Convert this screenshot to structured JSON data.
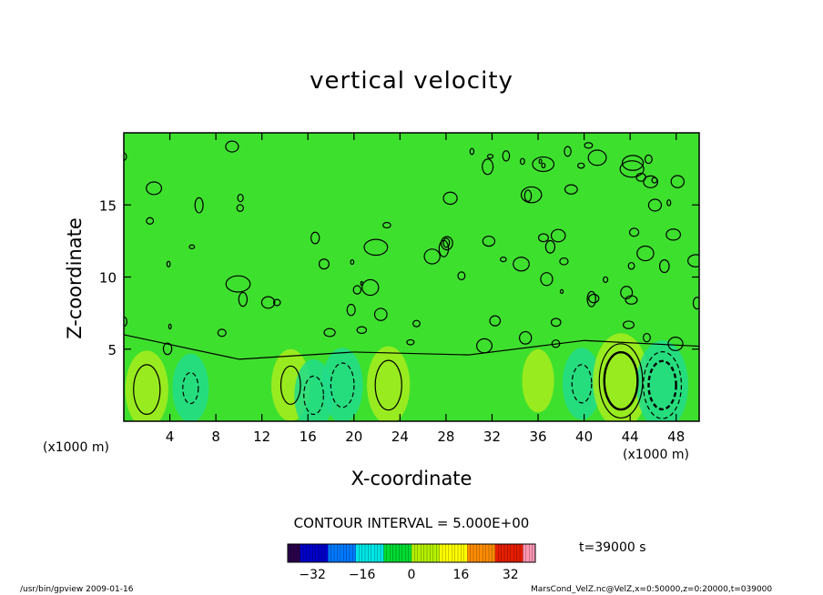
{
  "chart_data": {
    "type": "heatmap",
    "title": "vertical velocity",
    "xlabel": "X-coordinate",
    "ylabel": "Z-coordinate",
    "x_unit": "(x1000 m)",
    "y_unit": "(x1000 m)",
    "xlim": [
      0,
      50
    ],
    "ylim": [
      0,
      20
    ],
    "x_ticks": [
      "4",
      "8",
      "12",
      "16",
      "20",
      "24",
      "28",
      "32",
      "36",
      "40",
      "44",
      "48"
    ],
    "y_ticks": [
      "5",
      "10",
      "15"
    ],
    "contour_interval": "CONTOUR INTERVAL = 5.000E+00",
    "time_label": "t=39000 s",
    "colorbar": {
      "range": [
        -40,
        40
      ],
      "ticks": [
        "−32",
        "−16",
        "0",
        "16",
        "32"
      ],
      "colormap": [
        "#2a004a",
        "#0000c8",
        "#0078ff",
        "#00e6e6",
        "#00dc32",
        "#b4f000",
        "#ffff00",
        "#ff8c00",
        "#e61e00",
        "#ff96b4"
      ]
    },
    "features": [
      {
        "x": 2,
        "z": 2.2,
        "w": 8
      },
      {
        "x": 5.8,
        "z": 2.3,
        "w": -5
      },
      {
        "x": 14.5,
        "z": 2.5,
        "w": 6
      },
      {
        "x": 16.5,
        "z": 1.8,
        "w": -6
      },
      {
        "x": 19,
        "z": 2.5,
        "w": -7
      },
      {
        "x": 23,
        "z": 2.5,
        "w": 8
      },
      {
        "x": 36,
        "z": 2.8,
        "w": 3
      },
      {
        "x": 39.8,
        "z": 2.6,
        "w": -6
      },
      {
        "x": 43.2,
        "z": 2.8,
        "w": 14
      },
      {
        "x": 46.8,
        "z": 2.5,
        "w": -12
      }
    ],
    "contours": [
      5,
      10,
      -5,
      -10
    ],
    "background_value": 0
  },
  "footer": {
    "left": "/usr/bin/gpview   2009-01-16",
    "right": "MarsCond_VelZ.nc@VelZ,x=0:50000,z=0:20000,t=039000"
  }
}
